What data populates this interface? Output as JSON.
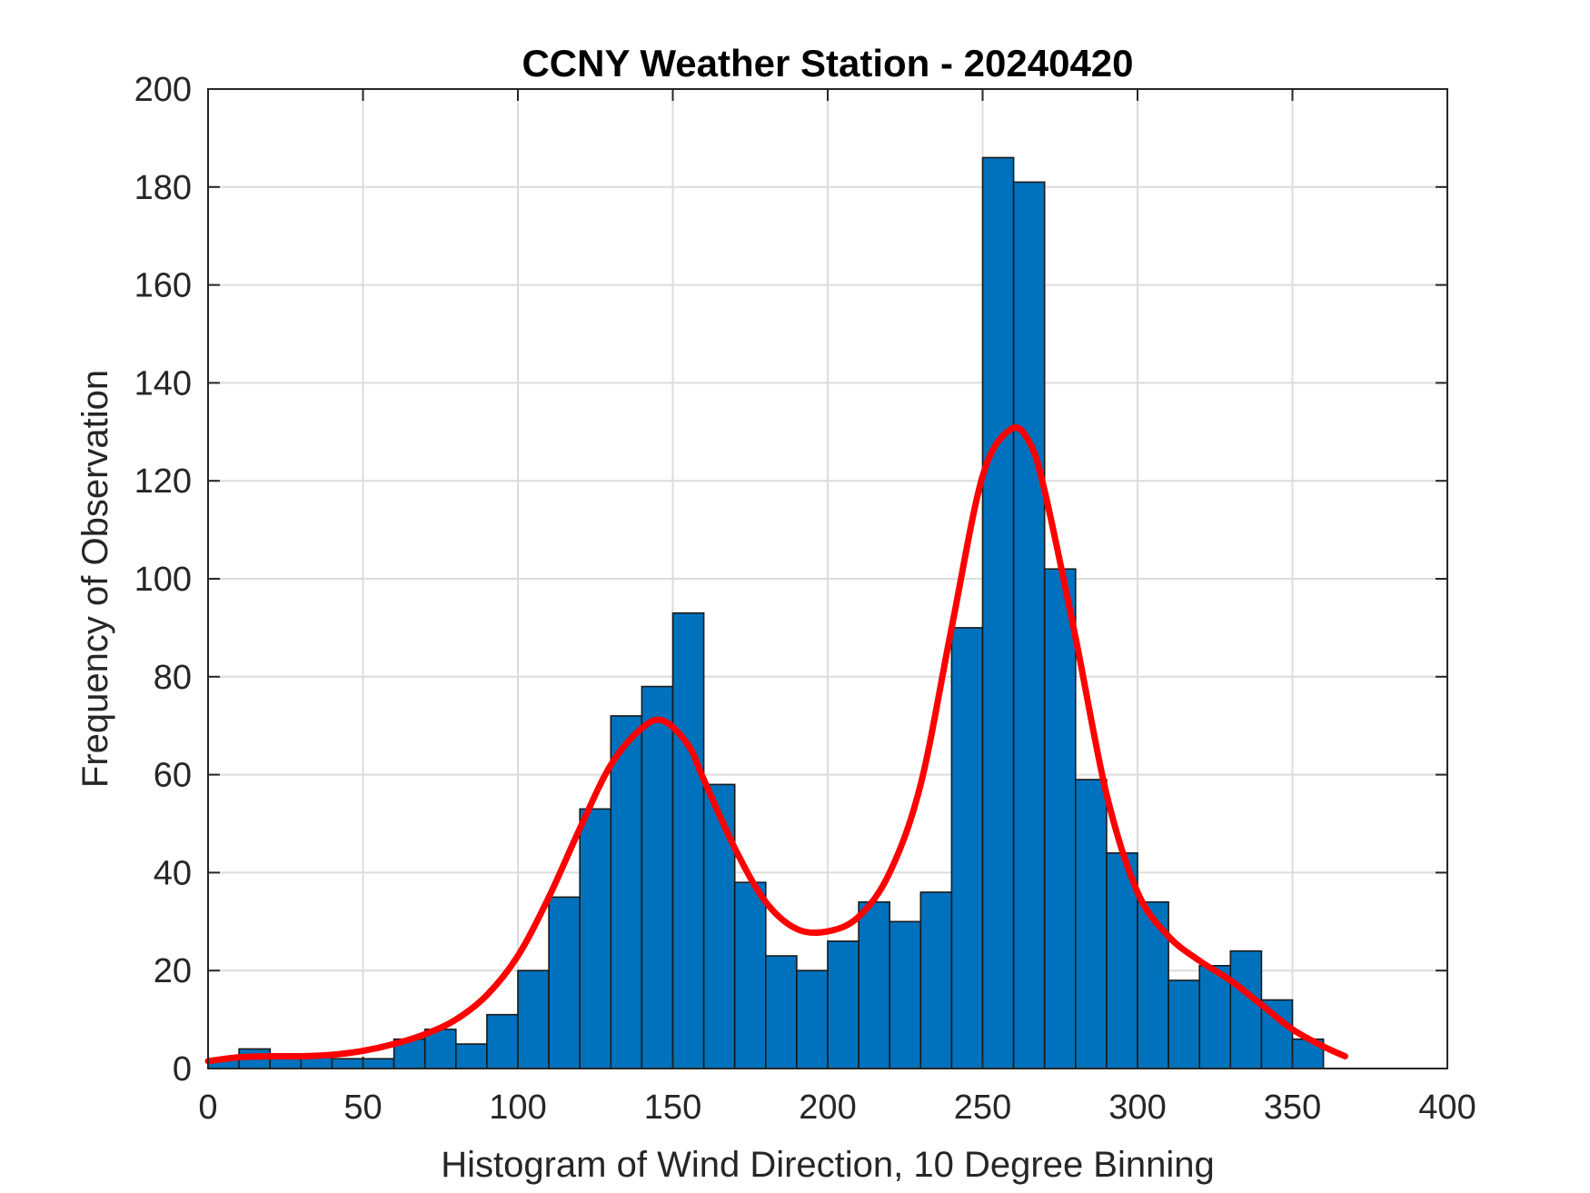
{
  "chart_data": {
    "type": "bar",
    "title": "CCNY Weather Station - 20240420",
    "xlabel": "Histogram of Wind Direction, 10 Degree Binning",
    "ylabel": "Frequency of Observation",
    "xlim": [
      0,
      400
    ],
    "ylim": [
      0,
      200
    ],
    "xticks": [
      0,
      50,
      100,
      150,
      200,
      250,
      300,
      350,
      400
    ],
    "yticks": [
      0,
      20,
      40,
      60,
      80,
      100,
      120,
      140,
      160,
      180,
      200
    ],
    "grid": true,
    "bin_width": 10,
    "bins": {
      "edges_start": [
        0,
        10,
        20,
        30,
        40,
        50,
        60,
        70,
        80,
        90,
        100,
        110,
        120,
        130,
        140,
        150,
        160,
        170,
        180,
        190,
        200,
        210,
        220,
        230,
        240,
        250,
        260,
        270,
        280,
        290,
        300,
        310,
        320,
        330,
        340,
        350
      ],
      "counts": [
        2,
        4,
        3,
        3,
        2,
        2,
        6,
        8,
        5,
        11,
        20,
        35,
        53,
        72,
        78,
        93,
        58,
        38,
        23,
        20,
        26,
        34,
        30,
        36,
        90,
        186,
        181,
        102,
        59,
        44,
        34,
        18,
        21,
        24,
        14,
        6
      ]
    },
    "bar_color": "#0072BD",
    "fit_curve": {
      "color": "#FF0000",
      "x": [
        0,
        10,
        20,
        30,
        40,
        50,
        60,
        70,
        80,
        90,
        100,
        110,
        120,
        130,
        140,
        147,
        155,
        160,
        170,
        180,
        190,
        200,
        210,
        220,
        230,
        240,
        250,
        259,
        265,
        270,
        280,
        290,
        300,
        310,
        320,
        330,
        340,
        350,
        360,
        367
      ],
      "y": [
        1.5,
        2.3,
        2.5,
        2.5,
        2.8,
        3.6,
        5,
        7,
        10,
        15,
        23,
        35,
        49,
        62,
        69.5,
        71,
        66,
        59,
        45,
        34,
        28.5,
        28,
        31,
        40,
        58,
        90,
        121,
        130.5,
        128,
        118,
        88,
        56,
        36,
        27,
        22,
        18,
        13,
        8,
        4.5,
        2.5
      ]
    }
  }
}
